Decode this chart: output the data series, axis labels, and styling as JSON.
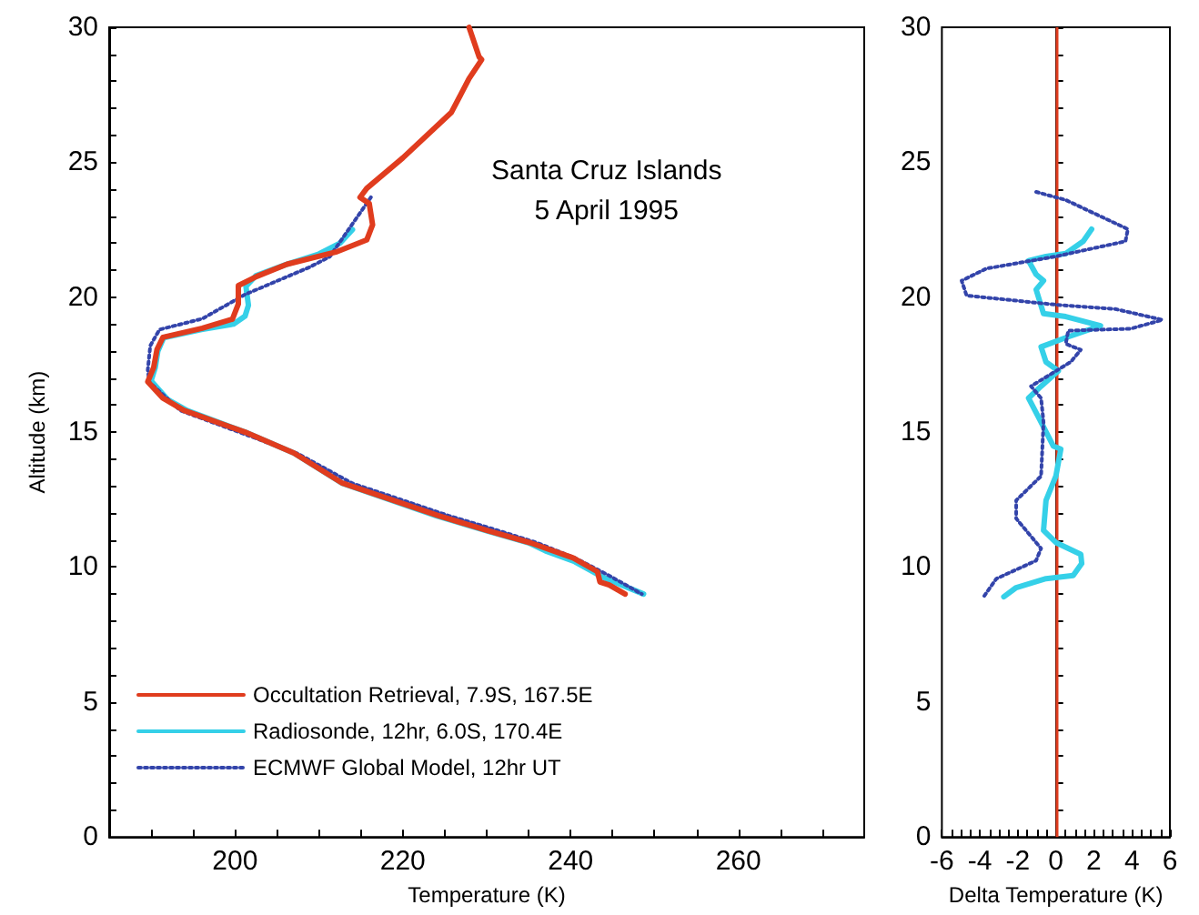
{
  "chart_data": [
    {
      "type": "line",
      "xlabel": "Temperature (K)",
      "ylabel": "Altitude (km)",
      "annotations": [
        "Santa Cruz Islands\n5 April 1995"
      ],
      "legend": "bottom left",
      "grid": false,
      "marker": "none",
      "xlim": [
        185,
        275
      ],
      "xticks": [
        {
          "value": 190,
          "label": null
        },
        {
          "value": 195,
          "label": null
        },
        200,
        {
          "value": 205,
          "label": null
        },
        {
          "value": 210,
          "label": null
        },
        {
          "value": 215,
          "label": null
        },
        220,
        {
          "value": 225,
          "label": null
        },
        {
          "value": 230,
          "label": null
        },
        {
          "value": 235,
          "label": null
        },
        240,
        {
          "value": 245,
          "label": null
        },
        {
          "value": 250,
          "label": null
        },
        {
          "value": 255,
          "label": null
        },
        260,
        {
          "value": 265,
          "label": null
        },
        {
          "value": 270,
          "label": null
        }
      ],
      "ylim": [
        0,
        30
      ],
      "yticks": [
        0,
        {
          "value": 1,
          "label": null
        },
        {
          "value": 2,
          "label": null
        },
        {
          "value": 3,
          "label": null
        },
        {
          "value": 4,
          "label": null
        },
        5,
        {
          "value": 6,
          "label": null
        },
        {
          "value": 7,
          "label": null
        },
        {
          "value": 8,
          "label": null
        },
        {
          "value": 9,
          "label": null
        },
        10,
        {
          "value": 11,
          "label": null
        },
        {
          "value": 12,
          "label": null
        },
        {
          "value": 13,
          "label": null
        },
        {
          "value": 14,
          "label": null
        },
        15,
        {
          "value": 16,
          "label": null
        },
        {
          "value": 17,
          "label": null
        },
        {
          "value": 18,
          "label": null
        },
        {
          "value": 19,
          "label": null
        },
        20,
        {
          "value": 21,
          "label": null
        },
        {
          "value": 22,
          "label": null
        },
        {
          "value": 23,
          "label": null
        },
        {
          "value": 24,
          "label": null
        },
        25,
        {
          "value": 26,
          "label": null
        },
        {
          "value": 27,
          "label": null
        },
        {
          "value": 28,
          "label": null
        },
        {
          "value": 29,
          "label": null
        },
        30
      ],
      "series": [
        {
          "name": "Occultation Retrieval, 7.9S, 167.5E",
          "color": "#e03c1e",
          "line_style": "solid",
          "x": [
            227.9,
            229.1,
            229.4,
            227.9,
            225.8,
            220.0,
            215.7,
            214.9,
            216.0,
            216.4,
            215.7,
            212.0,
            206.2,
            202.6,
            200.4,
            200.4,
            199.7,
            196.1,
            191.4,
            190.7,
            190.3,
            189.6,
            191.4,
            193.9,
            201.2,
            207.0,
            212.8,
            224.3,
            230.2,
            235.2,
            240.3,
            243.2,
            243.5,
            244.6,
            246.5
          ],
          "values": [
            30,
            28.9,
            28.8,
            28.1,
            26.85,
            25.16,
            24.03,
            23.7,
            23.47,
            22.68,
            22.12,
            21.67,
            21.22,
            20.77,
            20.43,
            19.75,
            19.19,
            18.85,
            18.51,
            18.06,
            17.39,
            16.87,
            16.26,
            15.81,
            15,
            14.23,
            13.11,
            11.9,
            11.34,
            10.9,
            10.34,
            9.83,
            9.45,
            9.34,
            9.0
          ]
        },
        {
          "name": "Radiosonde, 12hr, 6.0S, 170.4E",
          "color": "#35d0e8",
          "line_style": "solid",
          "x": [
            214.0,
            212.5,
            210.0,
            206.0,
            202.5,
            201.3,
            201.6,
            201.2,
            199.8,
            196.0,
            191.5,
            190.8,
            190.5,
            190.0,
            192.0,
            194.3,
            201.2,
            207.0,
            212.8,
            224.0,
            230.0,
            235.0,
            237.0,
            240.5,
            244.0,
            248.7
          ],
          "values": [
            22.5,
            22.0,
            21.6,
            21.2,
            20.8,
            20.4,
            19.7,
            19.3,
            19.0,
            18.8,
            18.5,
            18.0,
            17.4,
            16.9,
            16.2,
            15.8,
            15,
            14.23,
            13.1,
            11.9,
            11.34,
            10.9,
            10.6,
            10.2,
            9.6,
            9.0
          ]
        },
        {
          "name": "ECMWF Global Model, 12hr UT",
          "color": "#3344aa",
          "line_style": "dotted",
          "x": [
            216.2,
            211.3,
            208.8,
            201.2,
            196.1,
            191.0,
            189.9,
            189.6,
            189.8,
            193.5,
            200.5,
            207.5,
            214.0,
            225.5,
            231.5,
            236.0,
            240.5,
            244.5,
            248.5
          ],
          "values": [
            23.7,
            21.5,
            21.1,
            20.1,
            19.2,
            18.8,
            18.2,
            17.3,
            16.85,
            15.8,
            15,
            14.2,
            13.1,
            11.9,
            11.34,
            10.9,
            10.34,
            9.7,
            9.0
          ]
        }
      ]
    },
    {
      "type": "line",
      "xlabel": "Delta Temperature (K)",
      "grid": false,
      "marker": "none",
      "xlim": [
        -6,
        6
      ],
      "xticks": [
        -6,
        {
          "value": -5.5,
          "label": null
        },
        {
          "value": -5,
          "label": null
        },
        {
          "value": -4.5,
          "label": null
        },
        -4,
        {
          "value": -3.5,
          "label": null
        },
        {
          "value": -3,
          "label": null
        },
        {
          "value": -2.5,
          "label": null
        },
        -2,
        {
          "value": -1.5,
          "label": null
        },
        {
          "value": -1,
          "label": null
        },
        {
          "value": -0.5,
          "label": null
        },
        0,
        {
          "value": 0.5,
          "label": null
        },
        {
          "value": 1,
          "label": null
        },
        {
          "value": 1.5,
          "label": null
        },
        2,
        {
          "value": 2.5,
          "label": null
        },
        {
          "value": 3,
          "label": null
        },
        {
          "value": 3.5,
          "label": null
        },
        4,
        {
          "value": 4.5,
          "label": null
        },
        {
          "value": 5,
          "label": null
        },
        {
          "value": 5.5,
          "label": null
        },
        6
      ],
      "ylim": [
        0,
        30
      ],
      "yticks": [
        0,
        {
          "value": 1,
          "label": null
        },
        {
          "value": 2,
          "label": null
        },
        {
          "value": 3,
          "label": null
        },
        {
          "value": 4,
          "label": null
        },
        5,
        {
          "value": 6,
          "label": null
        },
        {
          "value": 7,
          "label": null
        },
        {
          "value": 8,
          "label": null
        },
        {
          "value": 9,
          "label": null
        },
        10,
        {
          "value": 11,
          "label": null
        },
        {
          "value": 12,
          "label": null
        },
        {
          "value": 13,
          "label": null
        },
        {
          "value": 14,
          "label": null
        },
        15,
        {
          "value": 16,
          "label": null
        },
        {
          "value": 17,
          "label": null
        },
        {
          "value": 18,
          "label": null
        },
        {
          "value": 19,
          "label": null
        },
        20,
        {
          "value": 21,
          "label": null
        },
        {
          "value": 22,
          "label": null
        },
        {
          "value": 23,
          "label": null
        },
        {
          "value": 24,
          "label": null
        },
        25,
        {
          "value": 26,
          "label": null
        },
        {
          "value": 27,
          "label": null
        },
        {
          "value": 28,
          "label": null
        },
        {
          "value": 29,
          "label": null
        },
        30
      ],
      "ref_lines": [
        {
          "axis": "x",
          "value": 0,
          "color": "#e03c1e",
          "line_style": "solid"
        }
      ],
      "series": [
        {
          "color": "#35d0e8",
          "line_style": "solid",
          "x": [
            1.88,
            1.44,
            0.52,
            -0.52,
            -1.44,
            -1.04,
            -0.65,
            -1.04,
            -0.65,
            0.52,
            2.35,
            0.52,
            -0.78,
            -0.52,
            0.13,
            -0.78,
            -1.44,
            -0.78,
            -0.13,
            0.26,
            0,
            -0.52,
            -0.65,
            0,
            1.31,
            1.36,
            0.91,
            -0.52,
            -2.09,
            -2.74
          ],
          "values": [
            22.52,
            22.07,
            21.62,
            21.51,
            21.35,
            20.84,
            20.61,
            20.28,
            19.39,
            19.28,
            18.94,
            18.5,
            18.16,
            17.6,
            17.27,
            16.7,
            16.26,
            15.37,
            14.48,
            14.37,
            13.37,
            12.47,
            11.36,
            10.91,
            10.47,
            10.13,
            9.69,
            9.57,
            9.24,
            8.9
          ]
        },
        {
          "color": "#3344aa",
          "line_style": "dotted",
          "x": [
            -1.04,
            0.52,
            3.79,
            3.66,
            0,
            -3.66,
            -4.96,
            -4.7,
            0,
            3.13,
            5.61,
            3.92,
            0.65,
            0.52,
            1.31,
            0.78,
            -1.31,
            -0.78,
            -0.65,
            -0.78,
            -2.09,
            -2.09,
            -0.78,
            -1.04,
            -3.13,
            -3.8
          ],
          "values": [
            23.9,
            23.6,
            22.52,
            22.07,
            21.51,
            21.06,
            20.61,
            20.06,
            19.72,
            19.56,
            19.16,
            18.83,
            18.76,
            18.27,
            18.05,
            17.6,
            16.7,
            16.26,
            15.37,
            13.37,
            12.47,
            11.8,
            10.69,
            10.24,
            9.57,
            8.9
          ]
        }
      ]
    }
  ]
}
